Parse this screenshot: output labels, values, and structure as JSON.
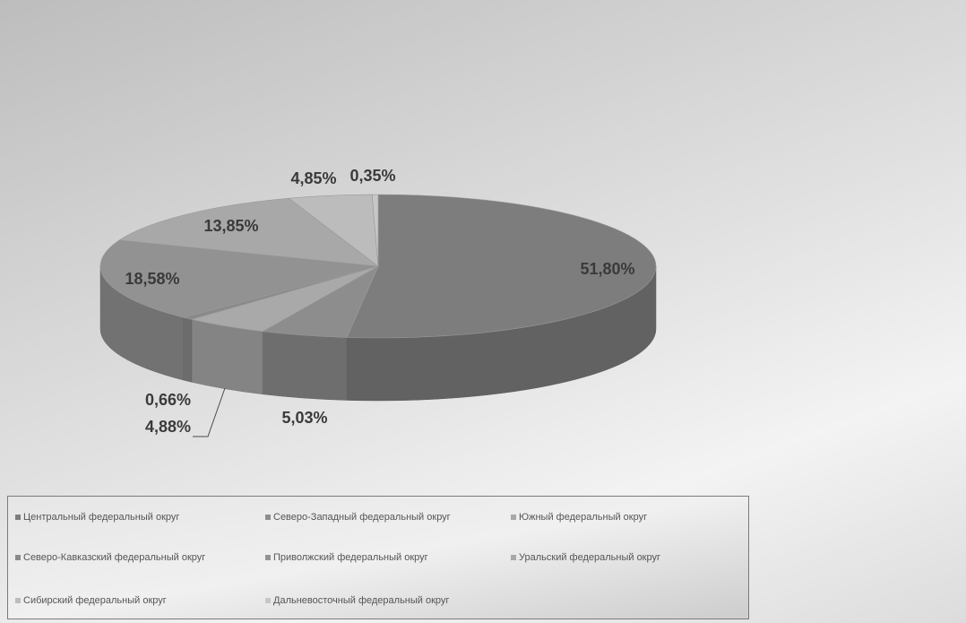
{
  "chart_data": {
    "type": "pie",
    "title": "",
    "slices": [
      {
        "label": "Центральный федеральный округ",
        "value": 51.8,
        "value_label": "51,80%",
        "color": "#7d7d7d"
      },
      {
        "label": "Северо-Западный федеральный округ",
        "value": 5.03,
        "value_label": "5,03%",
        "color": "#8d8d8d"
      },
      {
        "label": "Южный федеральный округ",
        "value": 4.88,
        "value_label": "4,88%",
        "color": "#a9a9a9"
      },
      {
        "label": "Северо-Кавказский федеральный округ",
        "value": 0.66,
        "value_label": "0,66%",
        "color": "#8a8a8a"
      },
      {
        "label": "Приволжский федеральный округ",
        "value": 18.58,
        "value_label": "18,58%",
        "color": "#929292"
      },
      {
        "label": "Уральский федеральный округ",
        "value": 13.85,
        "value_label": "13,85%",
        "color": "#a8a8a8"
      },
      {
        "label": "Сибирский федеральный округ",
        "value": 4.85,
        "value_label": "4,85%",
        "color": "#bcbcbc"
      },
      {
        "label": "Дальневосточный федеральный округ",
        "value": 0.35,
        "value_label": "0,35%",
        "color": "#c7c7c7"
      }
    ],
    "legend_position": "bottom"
  }
}
